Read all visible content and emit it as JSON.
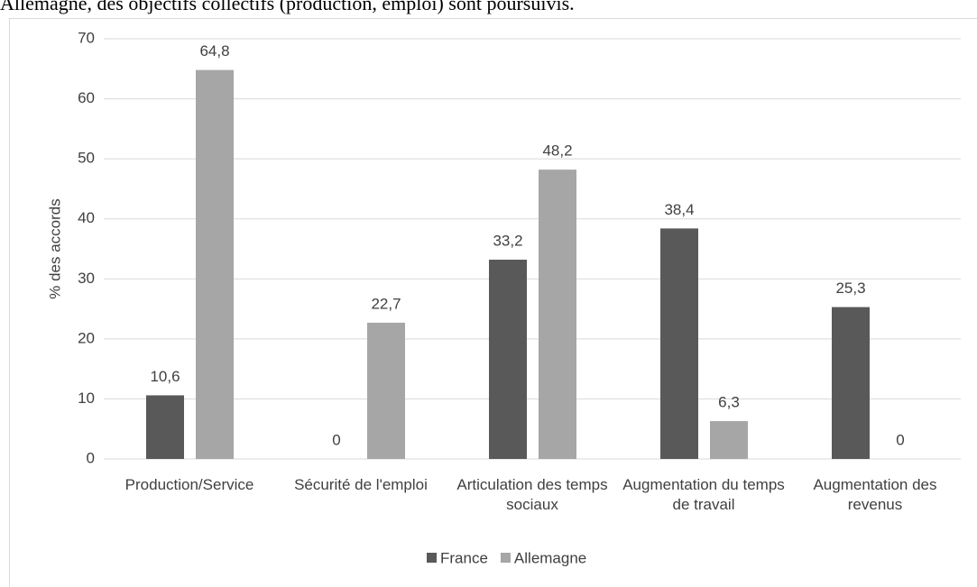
{
  "paragraph": "Allemagne, des objectifs collectifs (production, emploi) sont poursuivis.",
  "chart_data": {
    "type": "bar",
    "y_label": "% des accords",
    "categories": [
      "Production/Service",
      "Sécurité de l'emploi",
      "Articulation des temps sociaux",
      "Augmentation du temps de travail",
      "Augmentation des revenus"
    ],
    "series": [
      {
        "name": "France",
        "color": "#595959",
        "values": [
          10.6,
          0,
          33.2,
          38.4,
          25.3
        ],
        "value_labels": [
          "10,6",
          "0",
          "33,2",
          "38,4",
          "25,3"
        ]
      },
      {
        "name": "Allemagne",
        "color": "#a6a6a6",
        "values": [
          64.8,
          22.7,
          48.2,
          6.3,
          0
        ],
        "value_labels": [
          "64,8",
          "22,7",
          "48,2",
          "6,3",
          "0"
        ]
      }
    ],
    "ylim": [
      0,
      70
    ],
    "yticks": [
      0,
      10,
      20,
      30,
      40,
      50,
      60,
      70
    ],
    "grid": true,
    "legend": "bottom"
  }
}
